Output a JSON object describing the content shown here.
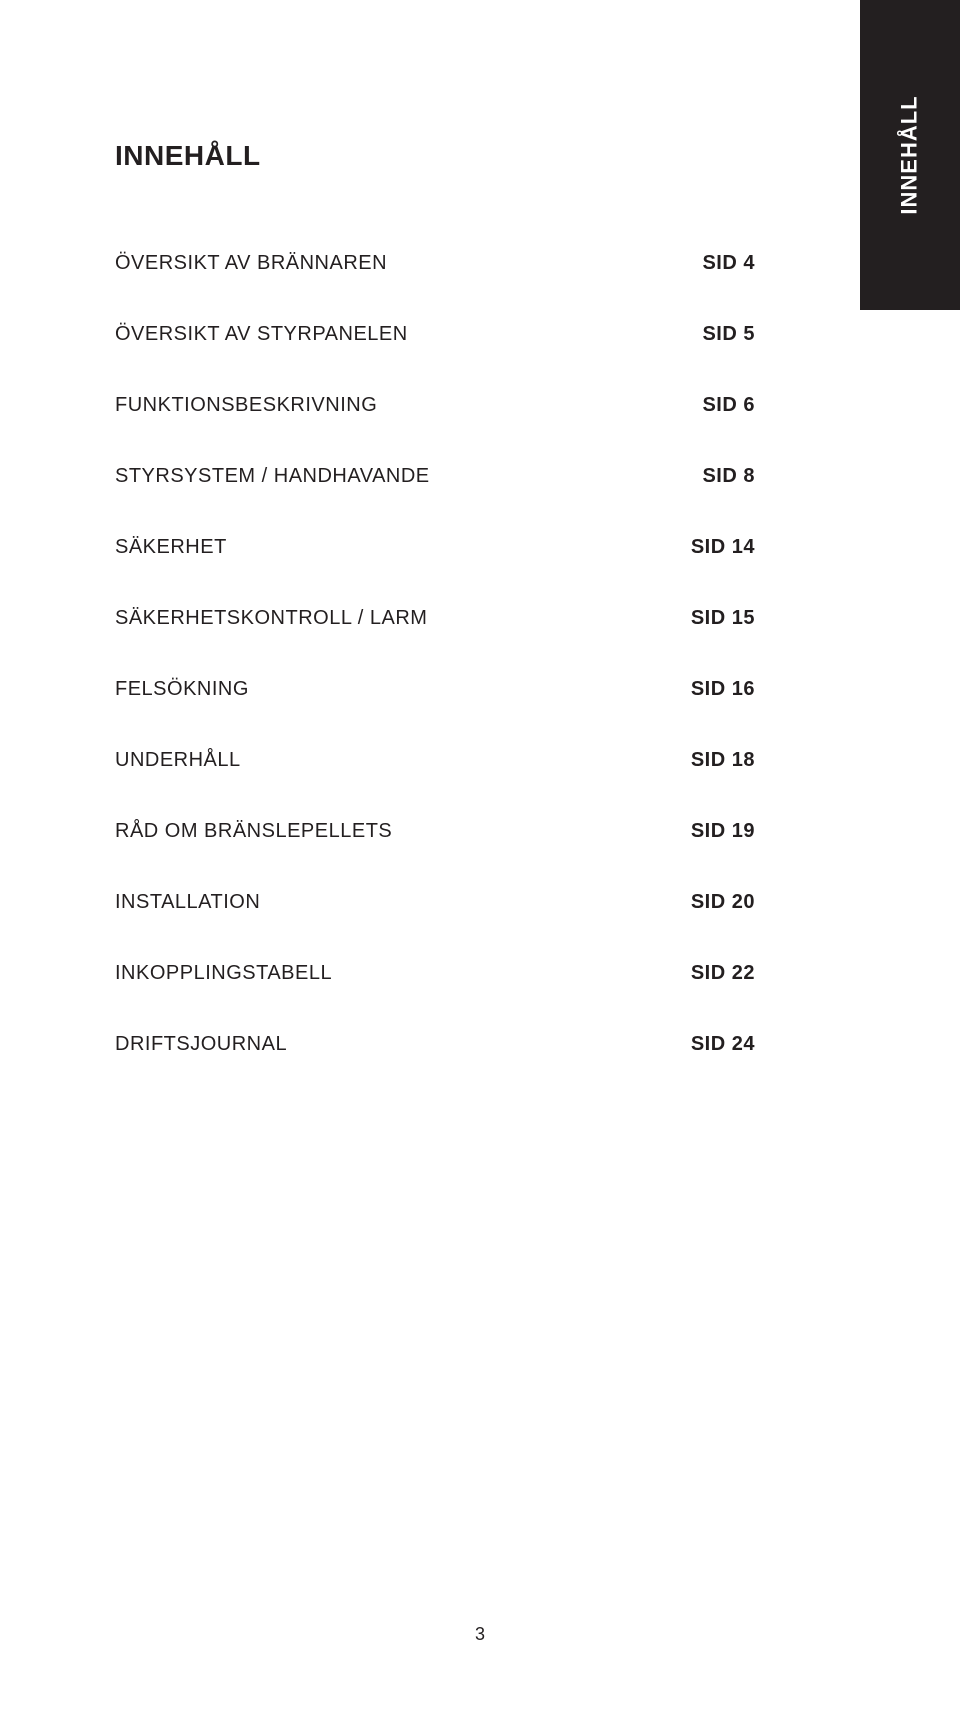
{
  "sideTab": {
    "label": "INNEHÅLL"
  },
  "title": "INNEHÅLL",
  "toc": [
    {
      "label": "ÖVERSIKT AV BRÄNNAREN",
      "page": "SID 4"
    },
    {
      "label": "ÖVERSIKT AV STYRPANELEN",
      "page": "SID 5"
    },
    {
      "label": "FUNKTIONSBESKRIVNING",
      "page": "SID 6"
    },
    {
      "label": "STYRSYSTEM / HANDHAVANDE",
      "page": "SID 8"
    },
    {
      "label": "SÄKERHET",
      "page": "SID 14"
    },
    {
      "label": "SÄKERHETSKONTROLL / LARM",
      "page": "SID 15"
    },
    {
      "label": "FELSÖKNING",
      "page": "SID 16"
    },
    {
      "label": "UNDERHÅLL",
      "page": "SID 18"
    },
    {
      "label": "RÅD OM BRÄNSLEPELLETS",
      "page": "SID 19"
    },
    {
      "label": "INSTALLATION",
      "page": "SID 20"
    },
    {
      "label": "INKOPPLINGSTABELL",
      "page": "SID 22"
    },
    {
      "label": "DRIFTSJOURNAL",
      "page": "SID 24"
    }
  ],
  "pageNumber": "3",
  "style": {
    "text_color": "#231f20",
    "tab_bg": "#231f20",
    "tab_text_color": "#ffffff",
    "title_fontsize_pt": 21,
    "toc_fontsize_pt": 15,
    "tab_fontsize_pt": 16,
    "page_number_fontsize_pt": 14
  }
}
